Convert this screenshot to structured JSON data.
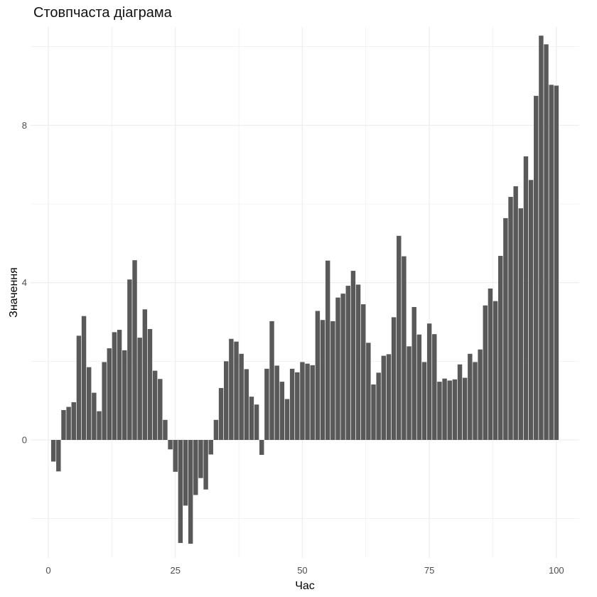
{
  "chart_data": {
    "type": "bar",
    "title": "Стовпчаста діаграма",
    "xlabel": "Час",
    "ylabel": "Значення",
    "xlim": [
      -3.5,
      104.5
    ],
    "ylim": [
      -3.0,
      10.5
    ],
    "x_ticks": [
      0,
      25,
      50,
      75,
      100
    ],
    "y_ticks": [
      0,
      4,
      8
    ],
    "grid": true,
    "colors": {
      "bar": "#595959",
      "grid": "#ebebeb"
    },
    "x": [
      1,
      2,
      3,
      4,
      5,
      6,
      7,
      8,
      9,
      10,
      11,
      12,
      13,
      14,
      15,
      16,
      17,
      18,
      19,
      20,
      21,
      22,
      23,
      24,
      25,
      26,
      27,
      28,
      29,
      30,
      31,
      32,
      33,
      34,
      35,
      36,
      37,
      38,
      39,
      40,
      41,
      42,
      43,
      44,
      45,
      46,
      47,
      48,
      49,
      50,
      51,
      52,
      53,
      54,
      55,
      56,
      57,
      58,
      59,
      60,
      61,
      62,
      63,
      64,
      65,
      66,
      67,
      68,
      69,
      70,
      71,
      72,
      73,
      74,
      75,
      76,
      77,
      78,
      79,
      80,
      81,
      82,
      83,
      84,
      85,
      86,
      87,
      88,
      89,
      90,
      91,
      92,
      93,
      94,
      95,
      96,
      97,
      98,
      99,
      100
    ],
    "values": [
      -0.55,
      -0.8,
      0.76,
      0.84,
      0.96,
      2.65,
      3.15,
      1.85,
      1.2,
      0.73,
      1.98,
      2.33,
      2.74,
      2.8,
      2.28,
      4.08,
      4.57,
      2.6,
      3.32,
      2.82,
      1.76,
      1.55,
      0.51,
      -0.24,
      -0.81,
      -2.62,
      -1.67,
      -2.64,
      -1.4,
      -0.97,
      -1.26,
      -0.37,
      0.51,
      1.32,
      2.0,
      2.57,
      2.5,
      2.19,
      1.8,
      1.1,
      0.9,
      -0.38,
      1.81,
      3.02,
      1.89,
      1.48,
      1.04,
      1.81,
      1.72,
      1.98,
      1.94,
      1.9,
      3.28,
      3.05,
      4.56,
      3.02,
      3.62,
      3.72,
      3.92,
      4.3,
      3.95,
      3.45,
      2.47,
      1.41,
      1.71,
      2.14,
      2.18,
      3.12,
      5.19,
      4.67,
      2.38,
      3.38,
      2.68,
      1.98,
      2.96,
      2.69,
      1.48,
      1.56,
      1.51,
      1.54,
      1.92,
      1.58,
      2.19,
      1.98,
      2.3,
      3.42,
      3.85,
      3.53,
      4.68,
      5.64,
      6.18,
      6.45,
      5.89,
      7.21,
      6.61,
      8.75,
      10.28,
      10.06,
      9.03,
      9.01
    ]
  }
}
